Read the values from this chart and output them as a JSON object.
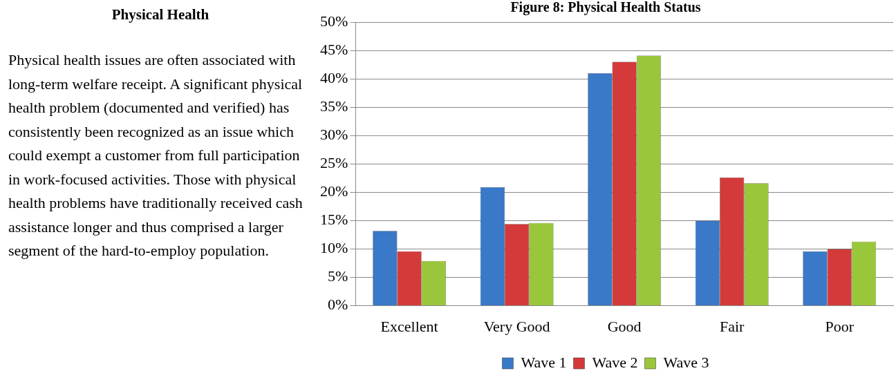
{
  "chart_data": {
    "type": "bar",
    "title": "Figure 8: Physical Health Status",
    "annotations": [
      "Physical Health",
      "Physical health issues are often associated with long-term welfare receipt. A significant physical health problem (documented and verified) has consistently been recognized as an issue which could exempt a customer from full participation in work-focused activities. Those with physical health problems have traditionally received cash assistance longer and thus comprised a larger segment of the hard-to-employ population."
    ],
    "categories": [
      "Excellent",
      "Very Good",
      "Good",
      "Fair",
      "Poor"
    ],
    "series": [
      {
        "name": "Wave 1",
        "color": "#3a78c8",
        "values": [
          13.2,
          20.9,
          41,
          15,
          9.6
        ]
      },
      {
        "name": "Wave 2",
        "color": "#d43a3a",
        "values": [
          9.6,
          14.4,
          43,
          22.6,
          10
        ]
      },
      {
        "name": "Wave 3",
        "color": "#9ac63c",
        "values": [
          7.9,
          14.6,
          44.1,
          21.6,
          11.3
        ]
      }
    ],
    "ylim": [
      0,
      50
    ],
    "yticks": [
      {
        "value": 0,
        "label": "0%"
      },
      {
        "value": 5,
        "label": "5%"
      },
      {
        "value": 10,
        "label": "10%"
      },
      {
        "value": 15,
        "label": "15%"
      },
      {
        "value": 20,
        "label": "20%"
      },
      {
        "value": 25,
        "label": "25%"
      },
      {
        "value": 30,
        "label": "30%"
      },
      {
        "value": 35,
        "label": "35%"
      },
      {
        "value": 40,
        "label": "40%"
      },
      {
        "value": 45,
        "label": "45%"
      },
      {
        "value": 50,
        "label": "50%"
      }
    ],
    "grid": "y",
    "legend": "bottom"
  }
}
